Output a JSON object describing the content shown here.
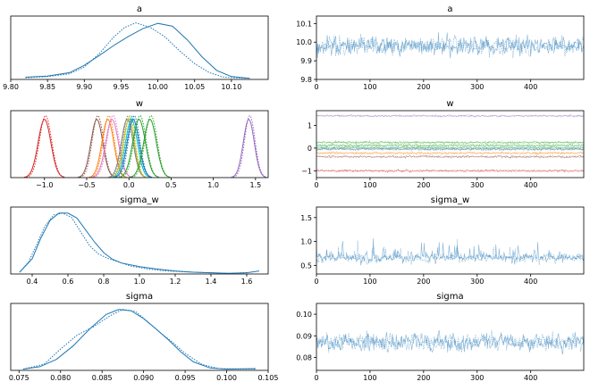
{
  "chart_data": [
    {
      "id": "a_kde",
      "type": "line",
      "title": "a",
      "xlim": [
        9.8,
        10.15
      ],
      "xticks": [
        [
          "9.80",
          9.8
        ],
        [
          "9.85",
          9.85
        ],
        [
          "9.90",
          9.9
        ],
        [
          "9.95",
          9.95
        ],
        [
          "10.00",
          10.0
        ],
        [
          "10.05",
          10.05
        ],
        [
          "10.10",
          10.1
        ]
      ],
      "yticks": [],
      "series": [
        {
          "color": "#1f77b4",
          "style": "solid",
          "x": [
            9.82,
            9.85,
            9.88,
            9.9,
            9.92,
            9.94,
            9.96,
            9.98,
            10.0,
            10.02,
            10.04,
            10.06,
            10.08,
            10.1,
            10.125
          ],
          "y": [
            0.04,
            0.06,
            0.12,
            0.25,
            0.42,
            0.6,
            0.76,
            0.9,
            0.99,
            0.94,
            0.7,
            0.4,
            0.16,
            0.05,
            0.02
          ]
        },
        {
          "color": "#1f77b4",
          "style": "dotted",
          "x": [
            9.82,
            9.85,
            9.88,
            9.9,
            9.92,
            9.94,
            9.955,
            9.97,
            9.99,
            10.01,
            10.03,
            10.05,
            10.07,
            10.09,
            10.12
          ],
          "y": [
            0.03,
            0.05,
            0.1,
            0.22,
            0.45,
            0.75,
            0.92,
            1.0,
            0.92,
            0.75,
            0.5,
            0.28,
            0.12,
            0.04,
            0.02
          ]
        }
      ],
      "ylim": [
        0,
        1.12
      ]
    },
    {
      "id": "a_trace",
      "type": "line",
      "title": "a",
      "xlim": [
        0,
        499
      ],
      "xticks": [
        [
          "0",
          0
        ],
        [
          "100",
          100
        ],
        [
          "200",
          200
        ],
        [
          "300",
          300
        ],
        [
          "400",
          400
        ]
      ],
      "yticks": [
        [
          "9.8",
          9.8
        ],
        [
          "9.9",
          9.9
        ],
        [
          "10.0",
          10.0
        ],
        [
          "10.1",
          10.1
        ]
      ],
      "ylim": [
        9.8,
        10.14
      ],
      "trace": {
        "mean": 9.98,
        "sd": 0.05,
        "seed": 3,
        "color": "#1f77b4"
      }
    },
    {
      "id": "w_kde",
      "type": "line",
      "title": "w",
      "xlim": [
        -1.4,
        1.65
      ],
      "xticks": [
        [
          "−1.0",
          -1.0
        ],
        [
          "−0.5",
          -0.5
        ],
        [
          "0.0",
          0.0
        ],
        [
          "0.5",
          0.5
        ],
        [
          "1.0",
          1.0
        ],
        [
          "1.5",
          1.5
        ]
      ],
      "yticks": [],
      "ylim": [
        0,
        1.08
      ],
      "gauss": [
        {
          "mu": -1.0,
          "sd": 0.075,
          "color": "#d62728"
        },
        {
          "mu": -0.38,
          "sd": 0.07,
          "color": "#8c564b"
        },
        {
          "mu": -0.25,
          "sd": 0.07,
          "color": "#ff7f0e"
        },
        {
          "mu": -0.2,
          "sd": 0.075,
          "color": "#e377c2"
        },
        {
          "mu": -0.02,
          "sd": 0.07,
          "color": "#7f7f7f"
        },
        {
          "mu": 0.0,
          "sd": 0.065,
          "color": "#bcbd22"
        },
        {
          "mu": 0.03,
          "sd": 0.07,
          "color": "#17becf"
        },
        {
          "mu": 0.05,
          "sd": 0.07,
          "color": "#1f77b4"
        },
        {
          "mu": 0.12,
          "sd": 0.075,
          "color": "#2ca02c"
        },
        {
          "mu": 0.25,
          "sd": 0.075,
          "color": "#2ca02c"
        },
        {
          "mu": 1.42,
          "sd": 0.065,
          "color": "#9467bd"
        }
      ]
    },
    {
      "id": "w_trace",
      "type": "line",
      "title": "w",
      "xlim": [
        0,
        499
      ],
      "xticks": [
        [
          "0",
          0
        ],
        [
          "100",
          100
        ],
        [
          "200",
          200
        ],
        [
          "300",
          300
        ],
        [
          "400",
          400
        ]
      ],
      "yticks": [
        [
          "−1",
          -1
        ],
        [
          "0",
          0
        ],
        [
          "1",
          1
        ]
      ],
      "ylim": [
        -1.3,
        1.65
      ],
      "traces": [
        {
          "mean": 1.42,
          "sd": 0.04,
          "seed": 11,
          "color": "#9467bd"
        },
        {
          "mean": 0.25,
          "sd": 0.05,
          "seed": 12,
          "color": "#2ca02c"
        },
        {
          "mean": 0.12,
          "sd": 0.05,
          "seed": 13,
          "color": "#2ca02c"
        },
        {
          "mean": 0.03,
          "sd": 0.05,
          "seed": 14,
          "color": "#17becf"
        },
        {
          "mean": 0.0,
          "sd": 0.05,
          "seed": 15,
          "color": "#bcbd22"
        },
        {
          "mean": -0.05,
          "sd": 0.05,
          "seed": 16,
          "color": "#1f77b4"
        },
        {
          "mean": -0.22,
          "sd": 0.05,
          "seed": 17,
          "color": "#ff7f0e"
        },
        {
          "mean": -0.38,
          "sd": 0.05,
          "seed": 18,
          "color": "#8c564b"
        },
        {
          "mean": -1.0,
          "sd": 0.05,
          "seed": 19,
          "color": "#d62728"
        }
      ]
    },
    {
      "id": "sigma_w_kde",
      "type": "line",
      "title": "sigma_w",
      "xlim": [
        0.28,
        1.72
      ],
      "xticks": [
        [
          "0.4",
          0.4
        ],
        [
          "0.6",
          0.6
        ],
        [
          "0.8",
          0.8
        ],
        [
          "1.0",
          1.0
        ],
        [
          "1.2",
          1.2
        ],
        [
          "1.4",
          1.4
        ],
        [
          "1.6",
          1.6
        ]
      ],
      "yticks": [],
      "ylim": [
        0,
        1.1
      ],
      "series": [
        {
          "color": "#1f77b4",
          "style": "solid",
          "x": [
            0.33,
            0.4,
            0.45,
            0.5,
            0.55,
            0.6,
            0.65,
            0.7,
            0.75,
            0.8,
            0.85,
            0.9,
            1.0,
            1.1,
            1.2,
            1.3,
            1.4,
            1.5,
            1.6,
            1.67
          ],
          "y": [
            0.03,
            0.25,
            0.6,
            0.88,
            1.0,
            1.0,
            0.92,
            0.72,
            0.52,
            0.35,
            0.24,
            0.18,
            0.12,
            0.08,
            0.05,
            0.03,
            0.02,
            0.01,
            0.02,
            0.05
          ]
        },
        {
          "color": "#1f77b4",
          "style": "dotted",
          "x": [
            0.33,
            0.38,
            0.42,
            0.47,
            0.52,
            0.57,
            0.62,
            0.67,
            0.72,
            0.77,
            0.82,
            0.88,
            0.95,
            1.05,
            1.15,
            1.3,
            1.5,
            1.6
          ],
          "y": [
            0.03,
            0.2,
            0.45,
            0.78,
            0.97,
            1.0,
            0.93,
            0.7,
            0.47,
            0.33,
            0.26,
            0.2,
            0.13,
            0.08,
            0.05,
            0.03,
            0.01,
            0.02
          ]
        }
      ]
    },
    {
      "id": "sigma_w_trace",
      "type": "line",
      "title": "sigma_w",
      "xlim": [
        0,
        499
      ],
      "xticks": [
        [
          "0",
          0
        ],
        [
          "100",
          100
        ],
        [
          "200",
          200
        ],
        [
          "300",
          300
        ],
        [
          "400",
          400
        ]
      ],
      "yticks": [
        [
          "0.5",
          0.5
        ],
        [
          "1.0",
          1.0
        ],
        [
          "1.5",
          1.5
        ]
      ],
      "ylim": [
        0.32,
        1.72
      ],
      "trace": {
        "mean": 0.65,
        "sd": 0.14,
        "seed": 23,
        "color": "#1f77b4",
        "skew": true
      }
    },
    {
      "id": "sigma_kde",
      "type": "line",
      "title": "sigma",
      "xlim": [
        0.074,
        0.105
      ],
      "xticks": [
        [
          "0.075",
          0.075
        ],
        [
          "0.080",
          0.08
        ],
        [
          "0.085",
          0.085
        ],
        [
          "0.090",
          0.09
        ],
        [
          "0.095",
          0.095
        ],
        [
          "0.100",
          0.1
        ],
        [
          "0.105",
          0.105
        ]
      ],
      "yticks": [],
      "ylim": [
        0,
        1.1
      ],
      "series": [
        {
          "color": "#1f77b4",
          "style": "solid",
          "x": [
            0.0755,
            0.0775,
            0.0795,
            0.0815,
            0.0835,
            0.0855,
            0.087,
            0.0885,
            0.09,
            0.0915,
            0.093,
            0.0945,
            0.096,
            0.098,
            0.1,
            0.1035
          ],
          "y": [
            0.02,
            0.06,
            0.18,
            0.4,
            0.68,
            0.92,
            1.0,
            0.98,
            0.85,
            0.68,
            0.5,
            0.3,
            0.14,
            0.04,
            0.02,
            0.03
          ]
        },
        {
          "color": "#1f77b4",
          "style": "dotted",
          "x": [
            0.0755,
            0.078,
            0.08,
            0.082,
            0.084,
            0.086,
            0.0875,
            0.089,
            0.0905,
            0.092,
            0.0935,
            0.095,
            0.097,
            0.099,
            0.1035
          ],
          "y": [
            0.02,
            0.1,
            0.35,
            0.58,
            0.72,
            0.9,
            1.0,
            0.97,
            0.8,
            0.62,
            0.46,
            0.28,
            0.1,
            0.03,
            0.02
          ]
        }
      ]
    },
    {
      "id": "sigma_trace",
      "type": "line",
      "title": "sigma",
      "xlim": [
        0,
        499
      ],
      "xticks": [
        [
          "0",
          0
        ],
        [
          "100",
          100
        ],
        [
          "200",
          200
        ],
        [
          "300",
          300
        ],
        [
          "400",
          400
        ]
      ],
      "yticks": [
        [
          "0.08",
          0.08
        ],
        [
          "0.09",
          0.09
        ],
        [
          "0.10",
          0.1
        ]
      ],
      "ylim": [
        0.074,
        0.105
      ],
      "trace": {
        "mean": 0.087,
        "sd": 0.004,
        "seed": 31,
        "color": "#1f77b4"
      }
    }
  ]
}
